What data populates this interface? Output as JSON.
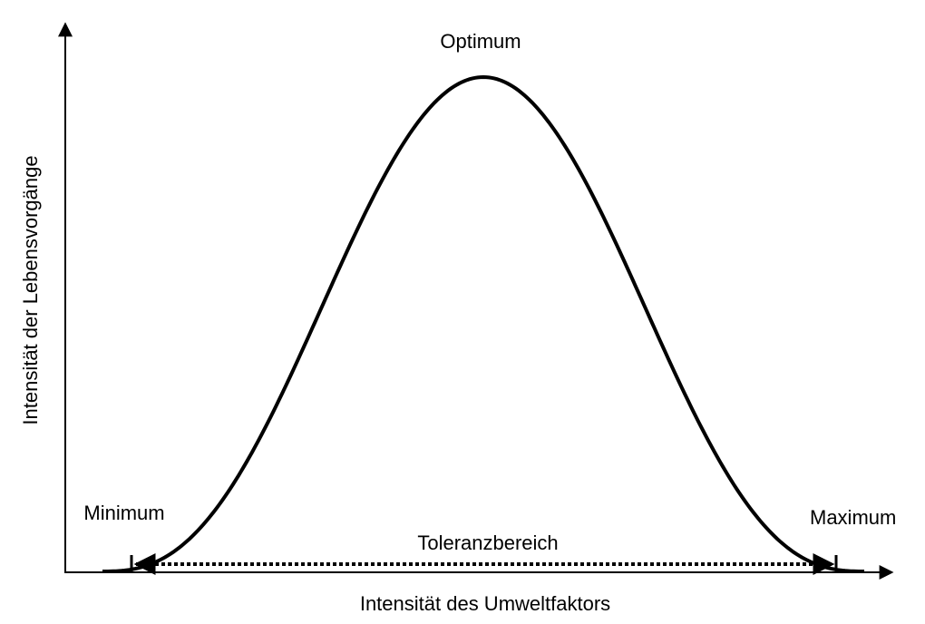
{
  "labels": {
    "peak": "Optimum",
    "minimum": "Minimum",
    "maximum": "Maximum",
    "range": "Toleranzbereich"
  },
  "axes": {
    "x_label": "Intensität des Umweltfaktors",
    "y_label": "Intensität der Lebensvorgänge"
  }
}
